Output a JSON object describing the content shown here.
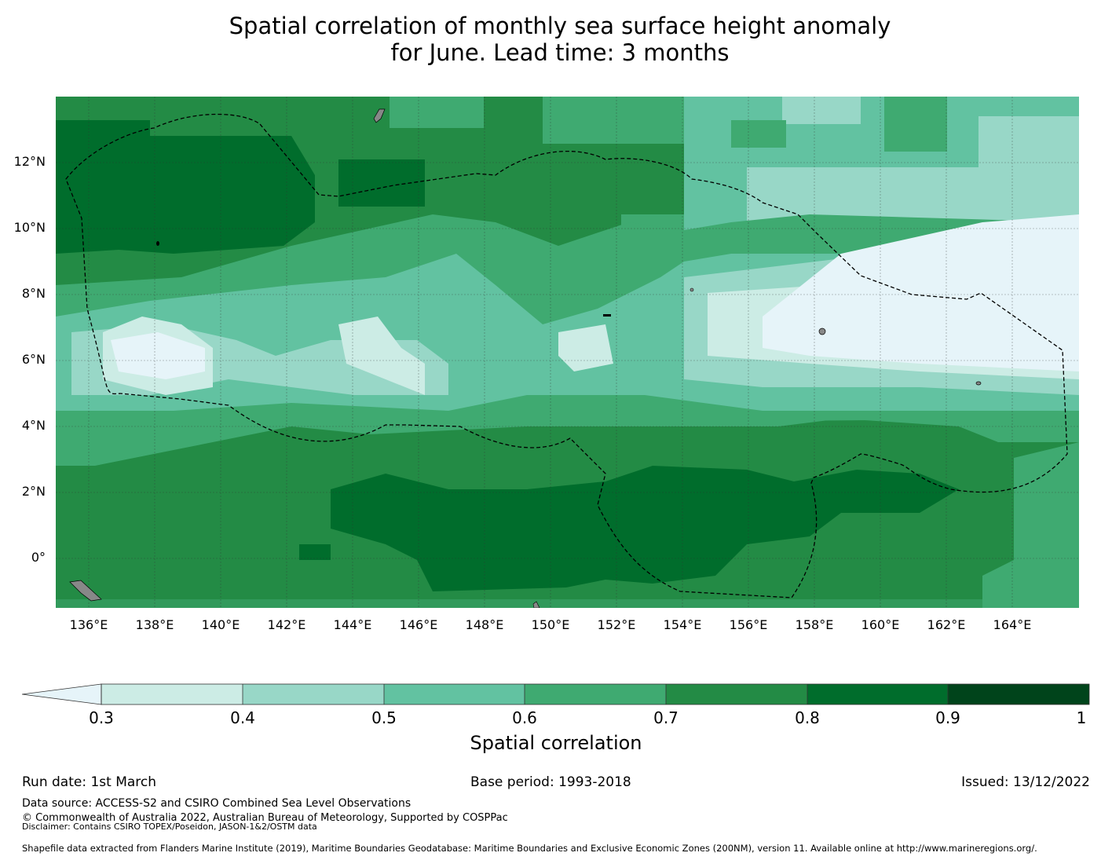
{
  "title": {
    "line1": "Spatial correlation of monthly sea surface height anomaly",
    "line2": "for June. Lead time: 3 months"
  },
  "map": {
    "lat_ticks": [
      "12°N",
      "10°N",
      "8°N",
      "6°N",
      "4°N",
      "2°N",
      "0°"
    ],
    "lon_ticks": [
      "136°E",
      "138°E",
      "140°E",
      "142°E",
      "144°E",
      "146°E",
      "148°E",
      "150°E",
      "152°E",
      "154°E",
      "156°E",
      "158°E",
      "160°E",
      "162°E",
      "164°E"
    ],
    "colors": {
      "below_0_3": "#e6f4f9",
      "c0_3_0_4": "#ccece5",
      "c0_4_0_5": "#98d7c7",
      "c0_5_0_6": "#62c2a1",
      "c0_6_0_7": "#3faa71",
      "c0_7_0_8": "#238b45",
      "c0_8_0_9": "#006d2c",
      "c0_9_1": "#00441b",
      "land": "#888888"
    }
  },
  "colorbar": {
    "ticks": [
      "0.3",
      "0.4",
      "0.5",
      "0.6",
      "0.7",
      "0.8",
      "0.9",
      "1"
    ],
    "label": "Spatial correlation"
  },
  "footer": {
    "run_date": "Run date: 1st March",
    "base_period": "Base period: 1993-2018",
    "issued": "Issued: 13/12/2022",
    "data_source": "Data source: ACCESS-S2 and CSIRO Combined Sea Level Observations",
    "copyright": "© Commonwealth of Australia 2022, Australian Bureau of Meteorology, Supported by COSPPac",
    "disclaimer": "Disclaimer: Contains CSIRO TOPEX/Poseidon, JASON-1&2/OSTM data",
    "shapefile": "Shapefile data extracted from Flanders Marine Institute (2019), Maritime Boundaries Geodatabase: Maritime Boundaries and Exclusive Economic Zones (200NM), version 11. Available online at http://www.marineregions.org/."
  }
}
